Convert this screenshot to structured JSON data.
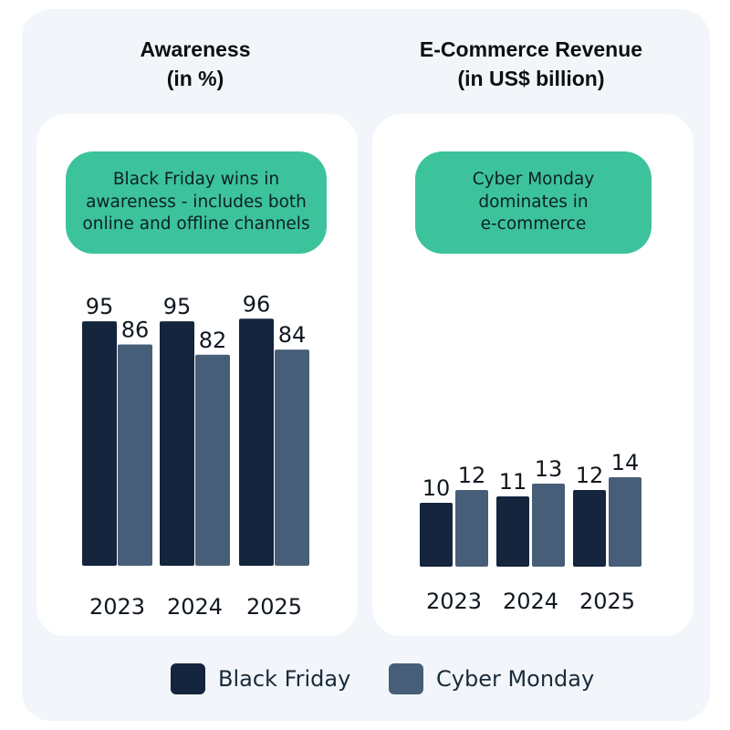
{
  "colors": {
    "black_friday": "#14253d",
    "cyber_monday": "#475e78",
    "callout": "#3cc39b",
    "card": "#ffffff",
    "background": "#f2f6fa"
  },
  "legend": {
    "black_friday": "Black Friday",
    "cyber_monday": "Cyber Monday"
  },
  "chart_data": [
    {
      "type": "bar",
      "title": "Awareness",
      "subtitle": "(in %)",
      "callout": [
        "Black Friday wins in",
        "awareness - includes both",
        "online and offline channels"
      ],
      "categories": [
        "2023",
        "2024",
        "2025"
      ],
      "series": [
        {
          "name": "Black Friday",
          "values": [
            95,
            95,
            96
          ]
        },
        {
          "name": "Cyber Monday",
          "values": [
            86,
            82,
            84
          ]
        }
      ],
      "ylim": [
        0,
        100
      ]
    },
    {
      "type": "bar",
      "title": "E-Commerce Revenue",
      "subtitle": "(in US$ billion)",
      "callout": [
        "Cyber Monday",
        "dominates in",
        "e-commerce"
      ],
      "categories": [
        "2023",
        "2024",
        "2025"
      ],
      "series": [
        {
          "name": "Black Friday",
          "values": [
            10,
            11,
            12
          ]
        },
        {
          "name": "Cyber Monday",
          "values": [
            12,
            13,
            14
          ]
        }
      ],
      "ylim": [
        0,
        40
      ]
    }
  ]
}
